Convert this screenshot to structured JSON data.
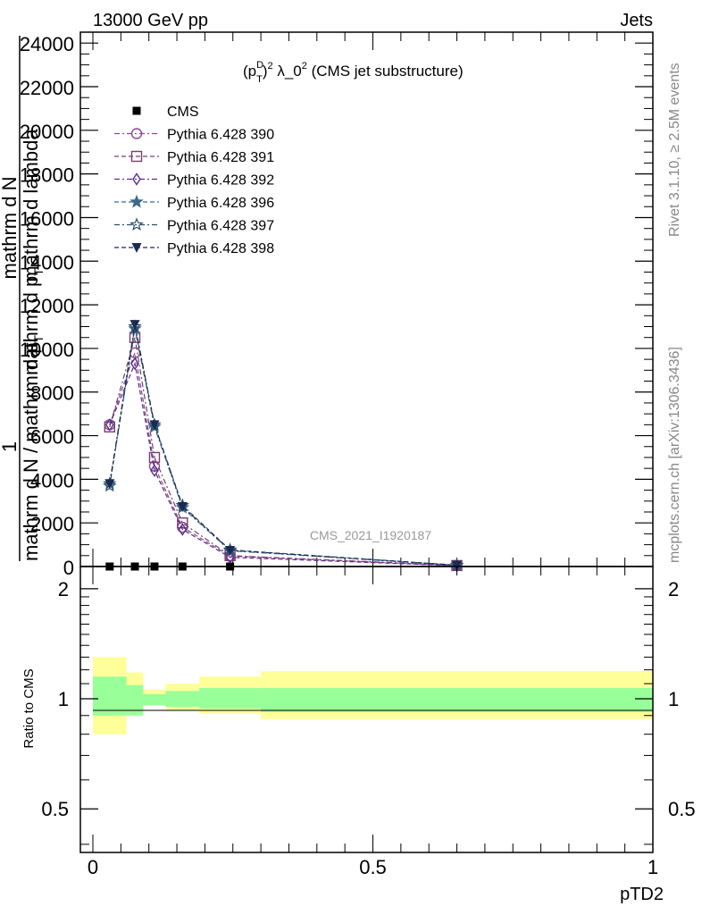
{
  "header": {
    "left": "13000 GeV pp",
    "right": "Jets"
  },
  "side_labels": {
    "rivet": "Rivet 3.1.10, ≥ 2.5M events",
    "mcplots": "mcplots.cern.ch [arXiv:1306.3436]"
  },
  "chart_data": [
    {
      "type": "line",
      "title": "(p_T^D)^2 λ_0^2 (CMS jet substructure)",
      "title_parts": {
        "a": "(p",
        "sup_d": "D",
        "sub_t": "T",
        "b": ")",
        "sup_2": "2",
        "c": " λ_0",
        "sup_2b": "2",
        "d": " (CMS jet substructure)"
      },
      "watermark": "CMS_2021_I1920187",
      "ylabel_parts": [
        "1",
        "mathrm d N / mathrm d p",
        "T",
        "mathrm d N",
        "mathrm d p",
        "T",
        "mathrm d lambda"
      ],
      "xlim": [
        0,
        1
      ],
      "ylim": [
        0,
        24500
      ],
      "y_ticks": [
        0,
        2000,
        4000,
        6000,
        8000,
        10000,
        12000,
        14000,
        16000,
        18000,
        20000,
        22000,
        24000
      ],
      "y_tick_labels": [
        "0",
        "2000",
        "4000",
        "6000",
        "8000",
        "10000",
        "12000",
        "14000",
        "16000",
        "18000",
        "20000",
        "22000",
        "24000"
      ],
      "legend_position": "top-left",
      "x": [
        0.03,
        0.075,
        0.11,
        0.16,
        0.245,
        0.65
      ],
      "series": [
        {
          "name": "CMS",
          "marker": "filled-square",
          "color": "#000000",
          "values": [
            0,
            0,
            0,
            0,
            0,
            null
          ]
        },
        {
          "name": "Pythia 6.428 390",
          "marker": "open-circle",
          "color": "#8a4b8f",
          "values": [
            6500,
            9800,
            4600,
            1800,
            480,
            40
          ]
        },
        {
          "name": "Pythia 6.428 391",
          "marker": "open-square",
          "color": "#7a3d6a",
          "values": [
            6400,
            10500,
            5000,
            2000,
            500,
            45
          ]
        },
        {
          "name": "Pythia 6.428 392",
          "marker": "open-diamond",
          "color": "#5a2d91",
          "values": [
            6500,
            9300,
            4400,
            1700,
            420,
            35
          ]
        },
        {
          "name": "Pythia 6.428 396",
          "marker": "filled-star",
          "color": "#3d6a8a",
          "values": [
            3800,
            10900,
            6400,
            2700,
            720,
            55
          ]
        },
        {
          "name": "Pythia 6.428 397",
          "marker": "open-star",
          "color": "#2d4f6e",
          "values": [
            3700,
            11000,
            6500,
            2800,
            760,
            60
          ]
        },
        {
          "name": "Pythia 6.428 398",
          "marker": "filled-triangle-down",
          "color": "#1a2a50",
          "values": [
            3800,
            11100,
            6500,
            2750,
            740,
            58
          ]
        }
      ]
    },
    {
      "type": "area",
      "ylabel": "Ratio to CMS",
      "xlabel": "pTD2",
      "xlim": [
        0,
        1
      ],
      "ylim": [
        0.38,
        2.3
      ],
      "log_scale": true,
      "x_ticks": [
        0,
        0.5,
        1
      ],
      "x_tick_labels": [
        "0",
        "0.5",
        "1"
      ],
      "y_ticks": [
        0.5,
        1,
        2
      ],
      "y_tick_labels": [
        "0.5",
        "1",
        "2"
      ],
      "bins": [
        {
          "x": [
            0.0,
            0.06
          ],
          "inner": [
            0.9,
            1.15
          ],
          "outer": [
            0.8,
            1.3
          ]
        },
        {
          "x": [
            0.06,
            0.09
          ],
          "inner": [
            0.9,
            1.09
          ],
          "outer": [
            0.9,
            1.18
          ]
        },
        {
          "x": [
            0.09,
            0.13
          ],
          "inner": [
            0.96,
            1.03
          ],
          "outer": [
            0.96,
            1.06
          ]
        },
        {
          "x": [
            0.13,
            0.19
          ],
          "inner": [
            0.95,
            1.05
          ],
          "outer": [
            0.93,
            1.1
          ]
        },
        {
          "x": [
            0.19,
            0.3
          ],
          "inner": [
            0.94,
            1.07
          ],
          "outer": [
            0.91,
            1.15
          ]
        },
        {
          "x": [
            0.3,
            1.0
          ],
          "inner": [
            0.92,
            1.07
          ],
          "outer": [
            0.88,
            1.19
          ]
        }
      ],
      "colors": {
        "inner": "#99ff99",
        "outer": "#ffff99"
      }
    }
  ]
}
